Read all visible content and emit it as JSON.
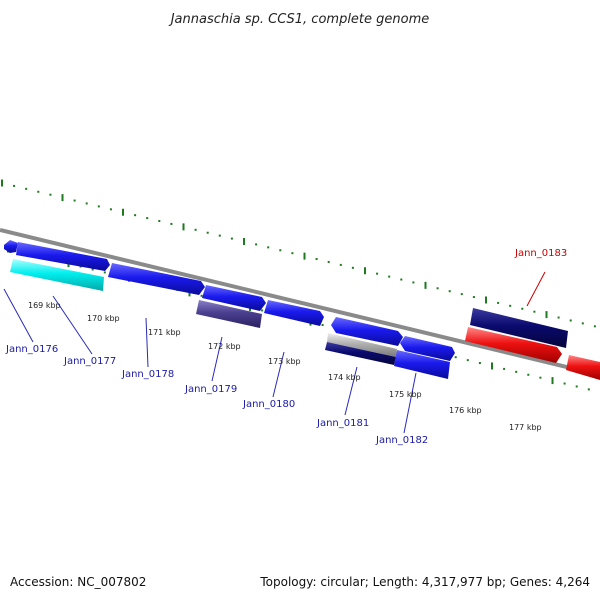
{
  "title": "Jannaschia sp. CCS1, complete genome",
  "footer": {
    "accession": "Accession: NC_007802",
    "summary": "Topology: circular; Length: 4,317,977 bp; Genes: 4,264"
  },
  "kbp_ticks": [
    "169 kbp",
    "170 kbp",
    "171 kbp",
    "172 kbp",
    "173 kbp",
    "174 kbp",
    "175 kbp",
    "176 kbp",
    "177 kbp"
  ],
  "gene_labels": [
    {
      "name": "Jann_0176",
      "color": "#1a1aa8"
    },
    {
      "name": "Jann_0177",
      "color": "#1a1aa8"
    },
    {
      "name": "Jann_0178",
      "color": "#1a1aa8"
    },
    {
      "name": "Jann_0179",
      "color": "#1a1aa8"
    },
    {
      "name": "Jann_0180",
      "color": "#1a1aa8"
    },
    {
      "name": "Jann_0181",
      "color": "#1a1aa8"
    },
    {
      "name": "Jann_0182",
      "color": "#1a1aa8"
    },
    {
      "name": "Jann_0183",
      "color": "#cc0000"
    }
  ],
  "colors": {
    "backbone": "#8a8a8a",
    "tick_green": "#1e7a1e",
    "gene_blue": "#1a1aee",
    "gene_navy": "#0a0a6e",
    "gene_cyan": "#00eeee",
    "gene_slate": "#4a4090",
    "gene_gray": "#b0b0b0",
    "gene_red": "#ee1111"
  }
}
